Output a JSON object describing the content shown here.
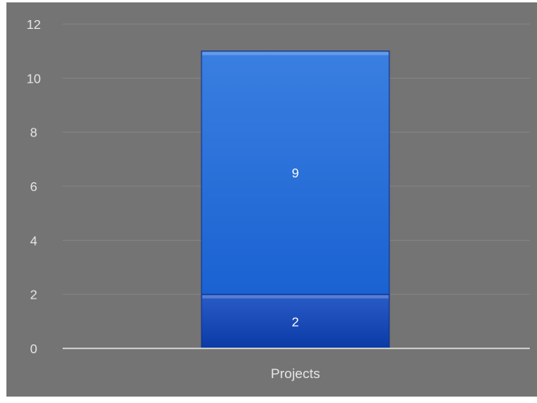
{
  "chart_data": {
    "type": "bar",
    "stacked": true,
    "categories": [
      "Projects"
    ],
    "series": [
      {
        "values": [
          2
        ],
        "color": "#0a3aa6",
        "highlight": "#2a5cc8"
      },
      {
        "values": [
          9
        ],
        "color": "#1a62d2",
        "highlight": "#3a7fe0"
      }
    ],
    "data_labels": [
      "2",
      "9"
    ],
    "ylim": [
      0,
      12
    ],
    "yticks": [
      "0",
      "2",
      "4",
      "6",
      "8",
      "10",
      "12"
    ],
    "grid": true,
    "legend": "none",
    "colors": {
      "background": "#747474",
      "frame": "#ffffff",
      "gridline": "#858585",
      "axis_line": "#c8c8c8",
      "tick_text": "#e6e6e6",
      "label_text": "#ffffff"
    }
  }
}
